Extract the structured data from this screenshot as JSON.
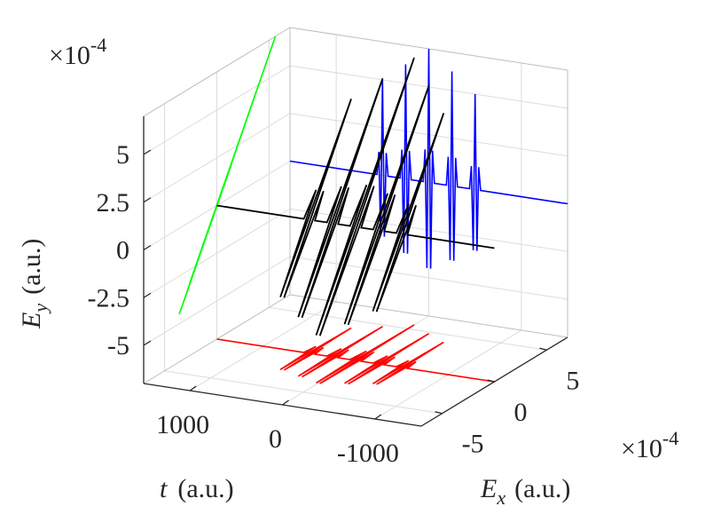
{
  "chart_data": {
    "type": "line3d",
    "x": [
      -1500,
      -560,
      -540,
      -520,
      -500,
      -480,
      -460,
      -440,
      -310,
      -290,
      -270,
      -250,
      -230,
      -210,
      -190,
      -60,
      -40,
      -20,
      0,
      20,
      40,
      60,
      190,
      210,
      230,
      250,
      270,
      290,
      310,
      440,
      460,
      480,
      500,
      520,
      540,
      560,
      1500
    ],
    "xlim": [
      -1500,
      1500
    ],
    "xticks": [
      -1000,
      0,
      1000
    ],
    "ylim": [
      -7,
      7
    ],
    "yticks": [
      -5,
      0,
      5
    ],
    "zlim": [
      -7,
      7
    ],
    "zticks": [
      -5,
      -2.5,
      0,
      2.5,
      5
    ],
    "grid": true,
    "series": [
      {
        "color": "#000000",
        "ex": [
          0,
          0,
          1,
          -2.6,
          4,
          -2.6,
          1,
          0,
          0,
          1.2,
          -3.1,
          4.8,
          -3.1,
          1.2,
          0,
          0,
          1.4,
          -3.6,
          5.6,
          -3.6,
          1.4,
          0,
          0,
          1.2,
          -3.1,
          4.8,
          -3.1,
          1.2,
          0,
          0,
          1,
          -2.6,
          4,
          -2.6,
          1,
          0,
          0
        ],
        "ey": [
          0,
          0,
          1.2,
          -3.2,
          5,
          -3.2,
          1.2,
          0,
          0,
          1.5,
          -3.9,
          6,
          -3.9,
          1.5,
          0,
          0,
          1.7,
          -4.5,
          7,
          -4.5,
          1.7,
          0,
          0,
          1.5,
          -3.9,
          6,
          -3.9,
          1.5,
          0,
          0,
          1.2,
          -3.2,
          5,
          -3.2,
          1.2,
          0,
          0
        ]
      }
    ],
    "projections": {
      "ex_max": "#0000ff",
      "ey_min": "#ff0000",
      "t_max": "#00ff00"
    },
    "xlabel": {
      "symbol": "t",
      "unit": "(a.u.)"
    },
    "ylabel": {
      "symbol": "E",
      "subscript": "x",
      "unit": "(a.u.)"
    },
    "zlabel": {
      "symbol": "E",
      "subscript": "y",
      "unit": "(a.u.)"
    },
    "multiplier": {
      "base": "×10",
      "exponent": "-4"
    }
  }
}
